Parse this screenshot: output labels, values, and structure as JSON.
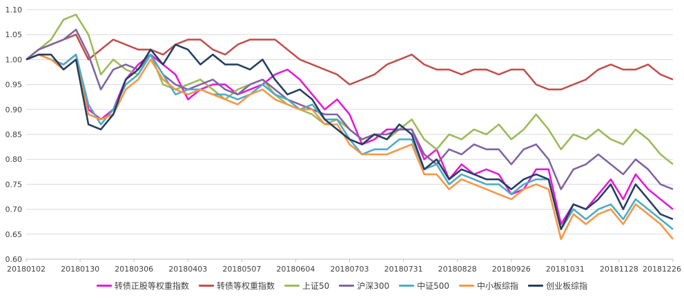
{
  "chart_data": {
    "type": "line",
    "title": "",
    "xlabel": "",
    "ylabel": "",
    "ylim": [
      0.6,
      1.1
    ],
    "yticks": [
      "1.10",
      "1.05",
      "1.00",
      "0.95",
      "0.90",
      "0.85",
      "0.80",
      "0.75",
      "0.70",
      "0.65",
      "0.60"
    ],
    "xtick_labels": [
      "20180102",
      "20180130",
      "20180306",
      "20180403",
      "20180507",
      "20180604",
      "20180703",
      "20180731",
      "20180828",
      "20180926",
      "20181031",
      "20181128",
      "20181226"
    ],
    "grid": "horizontal",
    "legend_position": "bottom",
    "series": [
      {
        "name": "转债正股等权重指数",
        "color": "#e619d7",
        "values": [
          1.0,
          1.01,
          1.0,
          0.99,
          1.01,
          0.9,
          0.88,
          0.9,
          0.96,
          0.99,
          1.01,
          0.99,
          0.97,
          0.92,
          0.94,
          0.95,
          0.95,
          0.93,
          0.94,
          0.95,
          0.97,
          0.98,
          0.96,
          0.93,
          0.9,
          0.92,
          0.89,
          0.83,
          0.84,
          0.86,
          0.86,
          0.86,
          0.8,
          0.82,
          0.76,
          0.79,
          0.77,
          0.78,
          0.77,
          0.73,
          0.74,
          0.78,
          0.78,
          0.67,
          0.71,
          0.7,
          0.73,
          0.76,
          0.72,
          0.77,
          0.74,
          0.72,
          0.7
        ]
      },
      {
        "name": "转债等权重指数",
        "color": "#c0504d",
        "values": [
          1.0,
          1.02,
          1.03,
          1.04,
          1.05,
          1.0,
          1.02,
          1.04,
          1.03,
          1.02,
          1.02,
          1.01,
          1.03,
          1.04,
          1.04,
          1.02,
          1.01,
          1.03,
          1.04,
          1.04,
          1.04,
          1.02,
          1.0,
          0.99,
          0.98,
          0.97,
          0.95,
          0.96,
          0.97,
          0.99,
          1.0,
          1.01,
          0.99,
          0.98,
          0.98,
          0.97,
          0.98,
          0.98,
          0.97,
          0.98,
          0.98,
          0.95,
          0.94,
          0.94,
          0.95,
          0.96,
          0.98,
          0.99,
          0.98,
          0.98,
          0.99,
          0.97,
          0.96
        ]
      },
      {
        "name": "上证50",
        "color": "#9bbb59",
        "values": [
          1.0,
          1.02,
          1.04,
          1.08,
          1.09,
          1.05,
          0.97,
          1.0,
          0.98,
          0.97,
          1.01,
          0.95,
          0.94,
          0.95,
          0.96,
          0.94,
          0.92,
          0.94,
          0.95,
          0.96,
          0.93,
          0.91,
          0.9,
          0.89,
          0.87,
          0.88,
          0.86,
          0.84,
          0.85,
          0.84,
          0.86,
          0.88,
          0.84,
          0.82,
          0.85,
          0.84,
          0.86,
          0.85,
          0.87,
          0.84,
          0.86,
          0.89,
          0.86,
          0.82,
          0.85,
          0.84,
          0.86,
          0.84,
          0.83,
          0.86,
          0.84,
          0.81,
          0.79
        ]
      },
      {
        "name": "沪深300",
        "color": "#8064a2",
        "values": [
          1.0,
          1.02,
          1.03,
          1.04,
          1.06,
          1.01,
          0.94,
          0.98,
          0.99,
          0.98,
          1.01,
          0.97,
          0.95,
          0.94,
          0.95,
          0.96,
          0.94,
          0.93,
          0.95,
          0.96,
          0.94,
          0.92,
          0.91,
          0.9,
          0.89,
          0.89,
          0.86,
          0.84,
          0.85,
          0.85,
          0.86,
          0.86,
          0.81,
          0.79,
          0.82,
          0.81,
          0.83,
          0.82,
          0.82,
          0.79,
          0.82,
          0.83,
          0.8,
          0.74,
          0.78,
          0.79,
          0.81,
          0.79,
          0.77,
          0.8,
          0.78,
          0.75,
          0.74
        ]
      },
      {
        "name": "中证500",
        "color": "#4bacc6",
        "values": [
          1.0,
          1.01,
          1.0,
          0.99,
          1.01,
          0.91,
          0.87,
          0.9,
          0.95,
          0.97,
          1.01,
          0.97,
          0.93,
          0.94,
          0.94,
          0.93,
          0.93,
          0.92,
          0.93,
          0.95,
          0.93,
          0.92,
          0.9,
          0.91,
          0.88,
          0.88,
          0.84,
          0.81,
          0.82,
          0.82,
          0.84,
          0.84,
          0.78,
          0.79,
          0.75,
          0.77,
          0.76,
          0.75,
          0.75,
          0.73,
          0.75,
          0.76,
          0.76,
          0.66,
          0.7,
          0.68,
          0.7,
          0.71,
          0.68,
          0.72,
          0.7,
          0.68,
          0.66
        ]
      },
      {
        "name": "中小板综指",
        "color": "#f79646",
        "values": [
          1.0,
          1.01,
          1.0,
          0.98,
          1.0,
          0.89,
          0.88,
          0.89,
          0.94,
          0.96,
          1.0,
          0.96,
          0.94,
          0.93,
          0.94,
          0.93,
          0.92,
          0.91,
          0.93,
          0.94,
          0.92,
          0.91,
          0.9,
          0.9,
          0.87,
          0.87,
          0.83,
          0.81,
          0.81,
          0.81,
          0.82,
          0.83,
          0.77,
          0.77,
          0.74,
          0.76,
          0.75,
          0.74,
          0.73,
          0.72,
          0.74,
          0.75,
          0.74,
          0.64,
          0.69,
          0.67,
          0.69,
          0.7,
          0.67,
          0.71,
          0.69,
          0.67,
          0.64
        ]
      },
      {
        "name": "创业板综指",
        "color": "#243f60",
        "values": [
          1.0,
          1.01,
          1.01,
          0.98,
          1.0,
          0.87,
          0.86,
          0.89,
          0.96,
          0.98,
          1.02,
          0.99,
          1.03,
          1.02,
          0.99,
          1.01,
          0.99,
          0.99,
          0.98,
          1.0,
          0.96,
          0.93,
          0.94,
          0.92,
          0.88,
          0.86,
          0.84,
          0.83,
          0.85,
          0.84,
          0.87,
          0.85,
          0.78,
          0.8,
          0.76,
          0.78,
          0.77,
          0.76,
          0.76,
          0.74,
          0.76,
          0.77,
          0.76,
          0.66,
          0.71,
          0.7,
          0.72,
          0.75,
          0.7,
          0.75,
          0.72,
          0.69,
          0.68
        ]
      }
    ]
  }
}
